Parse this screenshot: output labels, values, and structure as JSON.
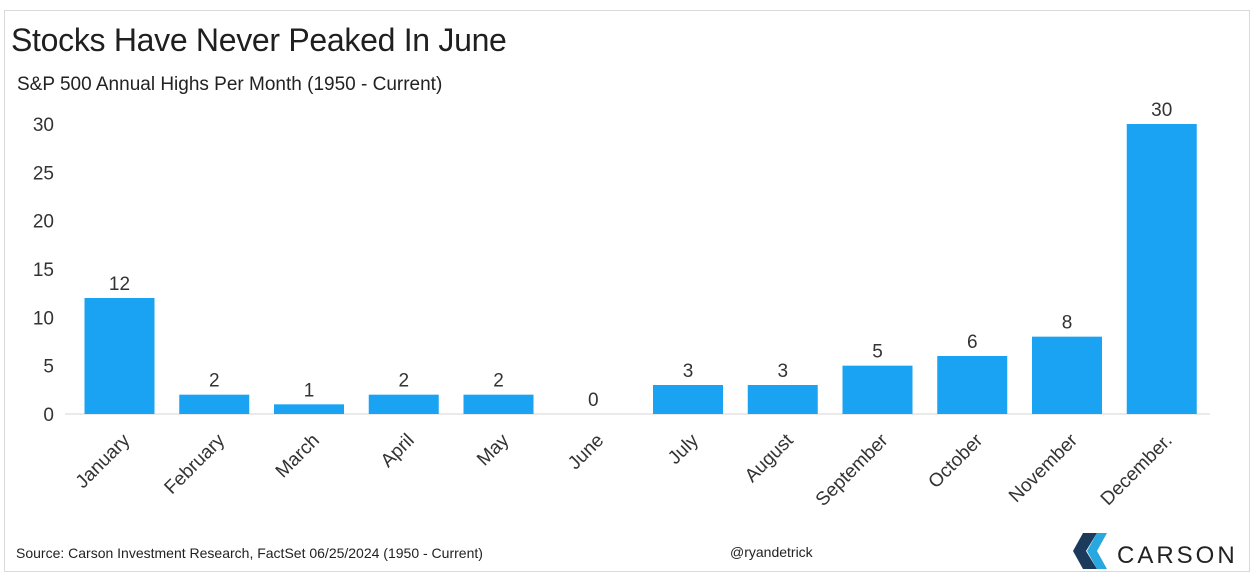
{
  "chart_data": {
    "type": "bar",
    "title": "Stocks Have Never Peaked In June",
    "subtitle": "S&P 500 Annual Highs Per Month (1950 - Current)",
    "categories": [
      "January",
      "February",
      "March",
      "April",
      "May",
      "June",
      "July",
      "August",
      "September",
      "October",
      "November",
      "December."
    ],
    "values": [
      12,
      2,
      1,
      2,
      2,
      0,
      3,
      3,
      5,
      6,
      8,
      30
    ],
    "yticks": [
      0,
      5,
      10,
      15,
      20,
      25,
      30
    ],
    "ylim": [
      0,
      30
    ],
    "bar_color": "#1aa3f2",
    "grid": false,
    "legend": "none"
  },
  "footer": {
    "source": "Source: Carson Investment Research, FactSet 06/25/2024 (1950 - Current)",
    "handle": "@ryandetrick",
    "brand": "CARSON"
  },
  "colors": {
    "logo_dark": "#1b3a5c",
    "logo_light": "#29a8e0"
  }
}
